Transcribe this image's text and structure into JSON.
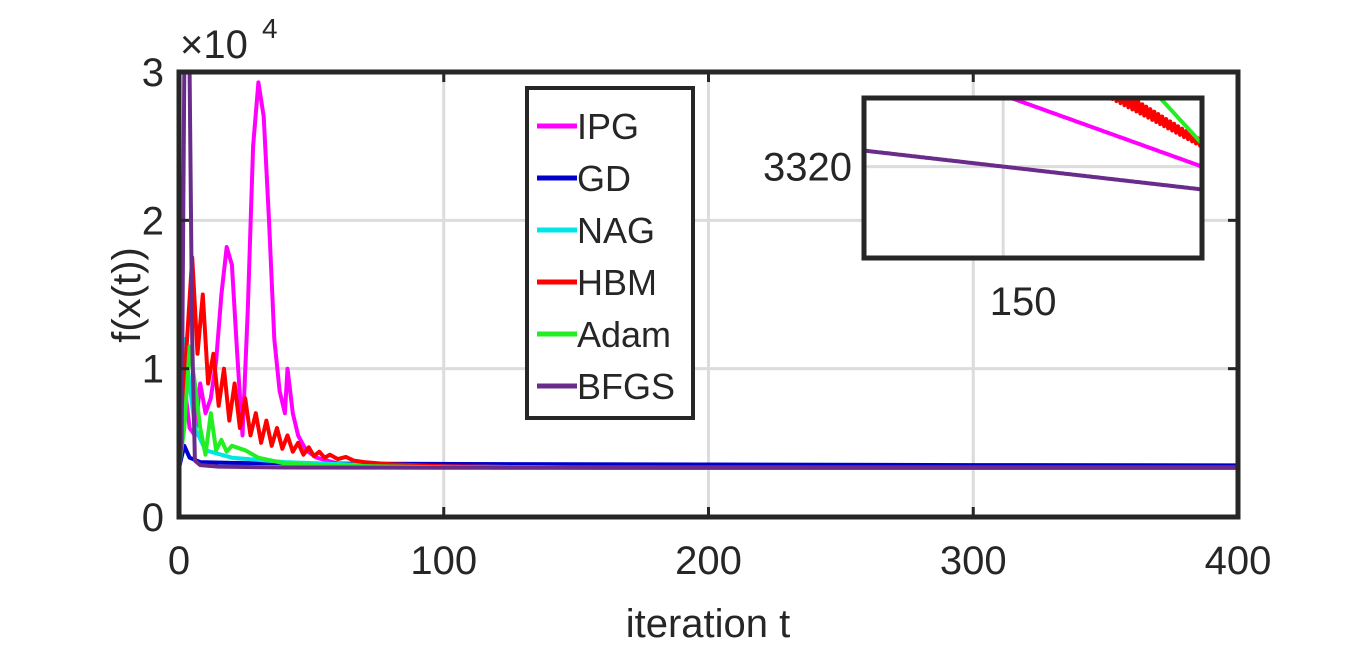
{
  "chart_data": {
    "type": "line",
    "title": "",
    "xlabel": "iteration t",
    "ylabel": "f(x(t))",
    "xlim": [
      0,
      400
    ],
    "ylim": [
      0,
      30000
    ],
    "x_ticks": [
      0,
      100,
      200,
      300,
      400
    ],
    "y_ticks": [
      0,
      10000,
      20000,
      30000
    ],
    "y_tick_labels": [
      "0",
      "1",
      "2",
      "3"
    ],
    "y_exponent_label": "×10",
    "y_exponent": "4",
    "grid": true,
    "legend_position": "top-center",
    "series": [
      {
        "name": "IPG",
        "color": "#ff00ff",
        "points": [
          [
            0,
            3300
          ],
          [
            2,
            9000
          ],
          [
            4,
            6000
          ],
          [
            6,
            5500
          ],
          [
            8,
            9000
          ],
          [
            10,
            7000
          ],
          [
            12,
            8000
          ],
          [
            14,
            10500
          ],
          [
            16,
            15000
          ],
          [
            18,
            18200
          ],
          [
            20,
            17000
          ],
          [
            22,
            11000
          ],
          [
            24,
            5500
          ],
          [
            26,
            14000
          ],
          [
            28,
            25000
          ],
          [
            30,
            29300
          ],
          [
            32,
            27000
          ],
          [
            34,
            20000
          ],
          [
            36,
            12000
          ],
          [
            38,
            8500
          ],
          [
            40,
            7000
          ],
          [
            41,
            10000
          ],
          [
            43,
            7000
          ],
          [
            45,
            5500
          ],
          [
            48,
            4500
          ],
          [
            52,
            4000
          ],
          [
            60,
            3600
          ],
          [
            80,
            3400
          ],
          [
            120,
            3330
          ],
          [
            200,
            3320
          ],
          [
            400,
            3318
          ]
        ]
      },
      {
        "name": "GD",
        "color": "#0000cc",
        "points": [
          [
            0,
            3300
          ],
          [
            2,
            4800
          ],
          [
            4,
            4000
          ],
          [
            8,
            3700
          ],
          [
            20,
            3650
          ],
          [
            60,
            3600
          ],
          [
            150,
            3550
          ],
          [
            300,
            3500
          ],
          [
            400,
            3480
          ]
        ]
      },
      {
        "name": "NAG",
        "color": "#00e5e5",
        "points": [
          [
            0,
            3300
          ],
          [
            2,
            12000
          ],
          [
            4,
            9000
          ],
          [
            6,
            6000
          ],
          [
            10,
            4500
          ],
          [
            20,
            4000
          ],
          [
            40,
            3700
          ],
          [
            80,
            3450
          ],
          [
            150,
            3330
          ],
          [
            250,
            3322
          ],
          [
            400,
            3319
          ]
        ]
      },
      {
        "name": "HBM",
        "color": "#ff0000",
        "points": [
          [
            0,
            3300
          ],
          [
            2,
            9000
          ],
          [
            5,
            17500
          ],
          [
            7,
            11000
          ],
          [
            9,
            15000
          ],
          [
            11,
            9000
          ],
          [
            13,
            11000
          ],
          [
            15,
            7500
          ],
          [
            17,
            10000
          ],
          [
            19,
            6500
          ],
          [
            21,
            9000
          ],
          [
            23,
            6000
          ],
          [
            25,
            8000
          ],
          [
            27,
            5500
          ],
          [
            29,
            7000
          ],
          [
            31,
            5000
          ],
          [
            33,
            6500
          ],
          [
            35,
            4800
          ],
          [
            37,
            6000
          ],
          [
            39,
            4600
          ],
          [
            41,
            5500
          ],
          [
            43,
            4400
          ],
          [
            45,
            5000
          ],
          [
            47,
            4200
          ],
          [
            49,
            4700
          ],
          [
            51,
            4100
          ],
          [
            53,
            4400
          ],
          [
            55,
            4000
          ],
          [
            57,
            4200
          ],
          [
            60,
            3900
          ],
          [
            63,
            4050
          ],
          [
            66,
            3800
          ],
          [
            70,
            3700
          ],
          [
            80,
            3550
          ],
          [
            100,
            3420
          ],
          [
            130,
            3360
          ],
          [
            160,
            3330
          ],
          [
            200,
            3322
          ],
          [
            400,
            3318
          ]
        ]
      },
      {
        "name": "Adam",
        "color": "#22ee22",
        "points": [
          [
            0,
            3300
          ],
          [
            2,
            6000
          ],
          [
            4,
            11500
          ],
          [
            6,
            9000
          ],
          [
            8,
            6000
          ],
          [
            10,
            4200
          ],
          [
            12,
            7000
          ],
          [
            14,
            4500
          ],
          [
            16,
            5200
          ],
          [
            18,
            4400
          ],
          [
            20,
            4800
          ],
          [
            25,
            4500
          ],
          [
            30,
            4000
          ],
          [
            35,
            3800
          ],
          [
            40,
            3600
          ],
          [
            60,
            3450
          ],
          [
            100,
            3360
          ],
          [
            200,
            3322
          ],
          [
            400,
            3318
          ]
        ]
      },
      {
        "name": "BFGS",
        "color": "#6a2c8a",
        "points": [
          [
            0,
            3300
          ],
          [
            1,
            5000
          ],
          [
            2,
            30000
          ],
          [
            3,
            30000
          ],
          [
            4,
            30000
          ],
          [
            5,
            12000
          ],
          [
            6,
            3800
          ],
          [
            8,
            3500
          ],
          [
            15,
            3400
          ],
          [
            40,
            3340
          ],
          [
            100,
            3322
          ],
          [
            200,
            3318
          ],
          [
            400,
            3318
          ]
        ]
      }
    ],
    "inset": {
      "x_tick_label": "150",
      "y_tick_label": "3320",
      "x_ticks": [
        150
      ],
      "y_ticks": [
        3320
      ],
      "xlim": [
        115,
        200
      ],
      "ylim": [
        3312,
        3326
      ]
    }
  }
}
